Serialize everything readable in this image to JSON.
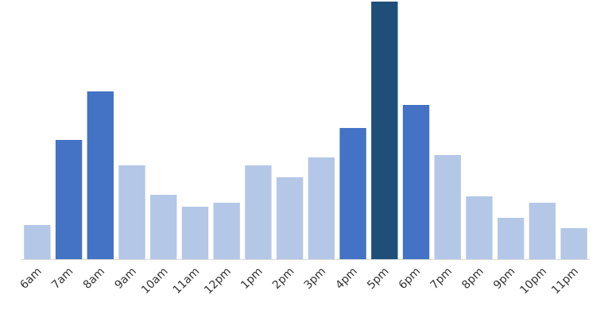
{
  "chart_data": {
    "type": "bar",
    "categories": [
      "6am",
      "7am",
      "8am",
      "9am",
      "10am",
      "11am",
      "12pm",
      "1pm",
      "2pm",
      "3pm",
      "4pm",
      "5pm",
      "6pm",
      "7pm",
      "8pm",
      "9pm",
      "10pm",
      "11pm"
    ],
    "values": [
      43,
      150,
      211,
      118,
      81,
      66,
      71,
      118,
      103,
      128,
      165,
      324,
      194,
      131,
      79,
      52,
      71,
      39
    ],
    "colors": [
      "#b4c7e7",
      "#4472c4",
      "#4472c4",
      "#b4c7e7",
      "#b4c7e7",
      "#b4c7e7",
      "#b4c7e7",
      "#b4c7e7",
      "#b4c7e7",
      "#b4c7e7",
      "#4472c4",
      "#1f4e79",
      "#4472c4",
      "#b4c7e7",
      "#b4c7e7",
      "#b4c7e7",
      "#b4c7e7",
      "#b4c7e7"
    ],
    "ylim": [
      0,
      324
    ]
  }
}
